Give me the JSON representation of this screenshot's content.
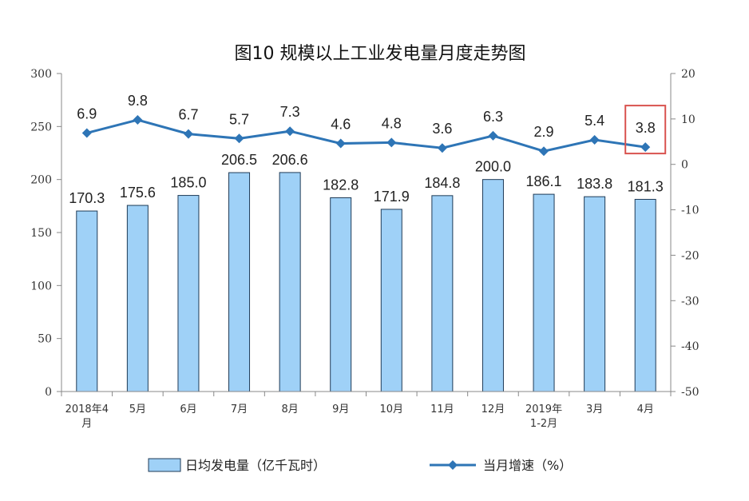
{
  "chart_data": {
    "type": "bar",
    "title": "图10  规模以上工业发电量月度走势图",
    "categories": [
      [
        "2018年4",
        "月"
      ],
      [
        "5月"
      ],
      [
        "6月"
      ],
      [
        "7月"
      ],
      [
        "8月"
      ],
      [
        "9月"
      ],
      [
        "10月"
      ],
      [
        "11月"
      ],
      [
        "12月"
      ],
      [
        "2019年",
        "1-2月"
      ],
      [
        "3月"
      ],
      [
        "4月"
      ]
    ],
    "series": [
      {
        "name": "日均发电量（亿千瓦时）",
        "type": "bar",
        "axis": "left",
        "color": "#9fd1f7",
        "values": [
          170.3,
          175.6,
          185.0,
          206.5,
          206.6,
          182.8,
          171.9,
          184.8,
          200.0,
          186.1,
          183.8,
          181.3
        ],
        "labels": [
          "170.3",
          "175.6",
          "185.0",
          "206.5",
          "206.6",
          "182.8",
          "171.9",
          "184.8",
          "200.0",
          "186.1",
          "183.8",
          "181.3"
        ]
      },
      {
        "name": "当月增速（%）",
        "type": "line",
        "axis": "right",
        "color": "#2e75b6",
        "values": [
          6.9,
          9.8,
          6.7,
          5.7,
          7.3,
          4.6,
          4.8,
          3.6,
          6.3,
          2.9,
          5.4,
          3.8
        ],
        "labels": [
          "6.9",
          "9.8",
          "6.7",
          "5.7",
          "7.3",
          "4.6",
          "4.8",
          "3.6",
          "6.3",
          "2.9",
          "5.4",
          "3.8"
        ]
      }
    ],
    "y_left": {
      "lim": [
        0,
        300
      ],
      "ticks": [
        "0",
        "50",
        "100",
        "150",
        "200",
        "250",
        "300"
      ]
    },
    "y_right": {
      "lim": [
        -50,
        20
      ],
      "ticks": [
        "-50",
        "-40",
        "-30",
        "-20",
        "-10",
        "0",
        "10",
        "20"
      ]
    },
    "highlight": {
      "category_index": 11,
      "series": "当月增速（%）",
      "color": "#d9534f"
    },
    "grid": false,
    "legend_position": "bottom"
  }
}
